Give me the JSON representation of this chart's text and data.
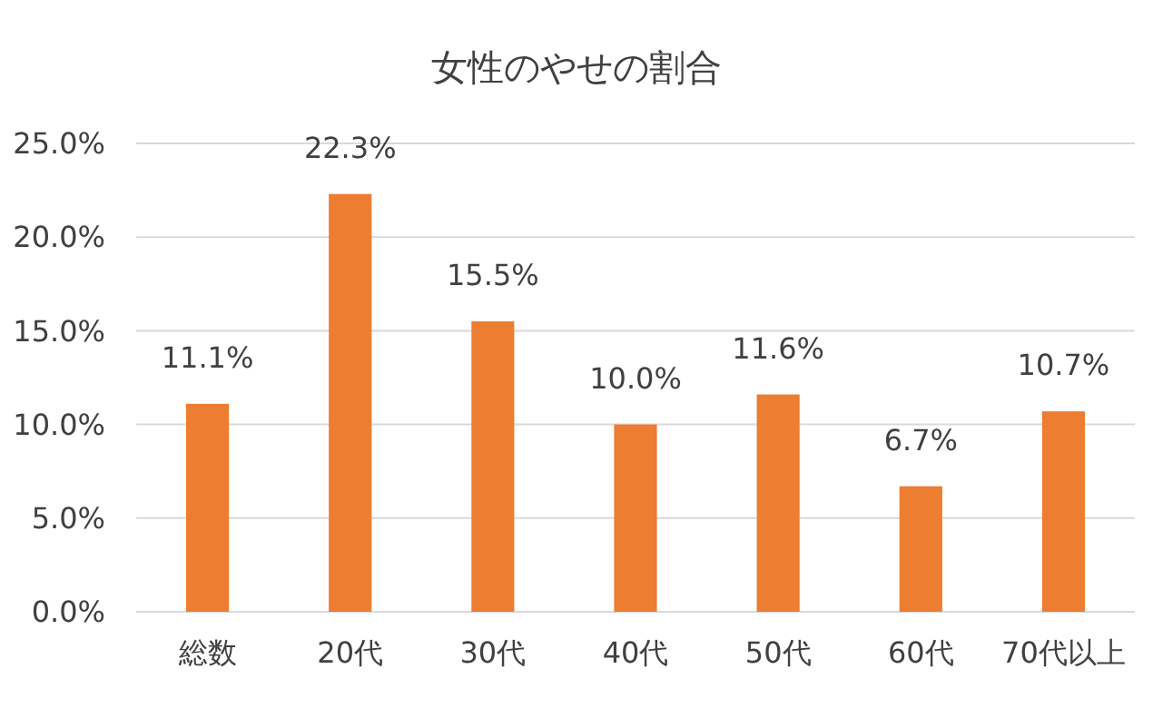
{
  "chart_data": {
    "type": "bar",
    "title": "女性のやせの割合",
    "categories": [
      "総数",
      "20代",
      "30代",
      "40代",
      "50代",
      "60代",
      "70代以上"
    ],
    "values": [
      11.1,
      22.3,
      15.5,
      10.0,
      11.6,
      6.7,
      10.7
    ],
    "value_labels": [
      "11.1%",
      "22.3%",
      "15.5%",
      "10.0%",
      "11.6%",
      "6.7%",
      "10.7%"
    ],
    "color": "#ed7d31",
    "ylim": [
      0,
      25
    ],
    "yticks": [
      {
        "value": 0,
        "label": "0.0%"
      },
      {
        "value": 5,
        "label": "5.0%"
      },
      {
        "value": 10,
        "label": "10.0%"
      },
      {
        "value": 15,
        "label": "15.0%"
      },
      {
        "value": 20,
        "label": "20.0%"
      },
      {
        "value": 25,
        "label": "25.0%"
      }
    ],
    "grid": "y"
  }
}
